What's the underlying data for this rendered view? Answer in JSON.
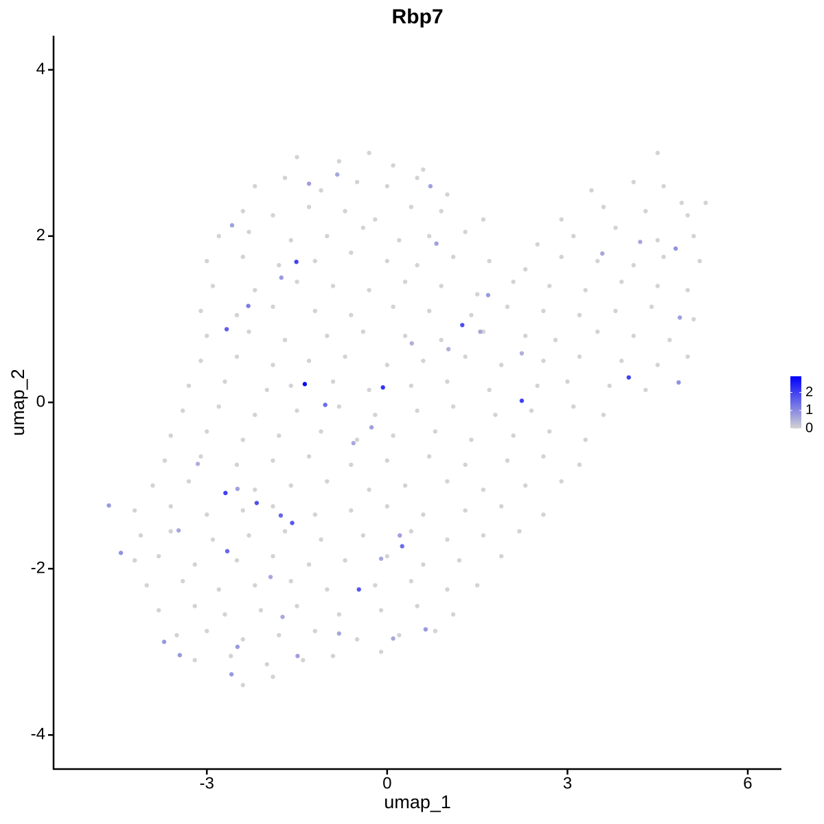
{
  "chart_data": {
    "type": "scatter",
    "title": "Rbp7",
    "x_label": "umap_1",
    "y_label": "umap_2",
    "xlim": [
      -5.55,
      6.56
    ],
    "xticks": [
      -3,
      0,
      3,
      6
    ],
    "ylim": [
      -4.41,
      4.41
    ],
    "yticks": [
      -4,
      -2,
      0,
      2,
      4
    ],
    "colors": [
      "#d3d3d3",
      "#0000ff"
    ],
    "colorlim": [
      0,
      2.9
    ],
    "colorticks": [
      0,
      1,
      2
    ],
    "x": [
      -1.5,
      -0.8,
      -0.3,
      0.1,
      0.6,
      4.5,
      -2.2,
      -1.7,
      -1.1,
      -0.5,
      0.0,
      0.5,
      1.0,
      3.4,
      4.1,
      4.6,
      4.9,
      -2.4,
      -1.9,
      -1.3,
      -0.7,
      -0.2,
      0.4,
      0.9,
      1.6,
      2.9,
      3.6,
      4.3,
      5.0,
      5.3,
      -2.8,
      -2.3,
      -1.6,
      -1.0,
      -0.4,
      0.2,
      0.7,
      1.3,
      2.5,
      3.1,
      3.8,
      4.5,
      5.1,
      -3.0,
      -2.4,
      -1.8,
      -1.2,
      -0.6,
      0.0,
      0.5,
      1.1,
      1.7,
      2.3,
      2.9,
      3.5,
      4.1,
      4.6,
      5.2,
      -2.9,
      -2.2,
      -1.5,
      -0.9,
      -0.3,
      0.3,
      0.9,
      1.5,
      2.1,
      2.7,
      3.3,
      3.9,
      4.5,
      5.0,
      -3.1,
      -2.5,
      -1.9,
      -1.2,
      -0.6,
      0.1,
      0.7,
      1.4,
      2.0,
      2.6,
      3.2,
      3.8,
      4.4,
      5.1,
      -3.0,
      -2.3,
      -1.7,
      -1.0,
      -0.4,
      0.3,
      0.9,
      1.6,
      2.3,
      2.8,
      3.5,
      4.1,
      4.7,
      -3.1,
      -2.5,
      -1.9,
      -1.3,
      -0.7,
      0.0,
      0.6,
      1.3,
      1.9,
      2.6,
      3.2,
      3.9,
      4.5,
      5.0,
      -3.3,
      -2.7,
      -2.0,
      -1.6,
      -0.9,
      -0.3,
      0.4,
      1.0,
      1.7,
      2.5,
      3.0,
      3.7,
      4.3,
      -3.4,
      -2.8,
      -2.2,
      -1.5,
      -0.8,
      -0.2,
      0.5,
      1.1,
      1.8,
      2.4,
      3.1,
      3.6,
      -3.6,
      -3.0,
      -2.4,
      -1.8,
      -1.1,
      -0.5,
      0.1,
      0.8,
      1.4,
      2.1,
      2.7,
      3.3,
      -3.7,
      -3.1,
      -2.5,
      -1.9,
      -1.3,
      -0.6,
      0.0,
      0.7,
      1.3,
      2.0,
      2.6,
      3.2,
      -3.9,
      -3.3,
      -2.2,
      -1.6,
      -1.0,
      -0.3,
      0.3,
      1.0,
      1.6,
      2.3,
      2.9,
      -4.2,
      -3.6,
      -3.0,
      -2.4,
      -1.9,
      -1.2,
      -0.6,
      0.0,
      0.6,
      1.3,
      1.9,
      2.6,
      -4.1,
      -3.6,
      -2.9,
      -2.3,
      -1.7,
      -1.1,
      -0.4,
      0.4,
      1.0,
      1.6,
      2.2,
      -4.2,
      -3.8,
      -3.2,
      -2.5,
      -1.9,
      -1.3,
      -0.7,
      0.0,
      0.6,
      1.2,
      1.9,
      -4.0,
      -3.4,
      -2.8,
      -2.2,
      -1.6,
      -1.0,
      -0.2,
      0.4,
      1.0,
      1.5,
      -3.8,
      -3.2,
      -2.7,
      -2.1,
      -1.5,
      -0.8,
      -0.1,
      0.5,
      1.1,
      -3.5,
      -3.0,
      -2.4,
      -1.8,
      -1.2,
      -0.5,
      0.2,
      0.8,
      -3.2,
      -2.6,
      -2.0,
      -1.4,
      -0.9,
      -0.1,
      -2.4,
      -1.9,
      0.72,
      -1.3,
      -0.83,
      -2.58,
      -1.76,
      0.82,
      1.68,
      4.87,
      4.85,
      4.21,
      3.58,
      4.8,
      -2.49,
      -3.47,
      -3.71,
      -3.45,
      -2.59,
      -2.49,
      -1.49,
      0.64,
      0.1,
      -0.8,
      0.21,
      -0.1,
      -0.26,
      -0.56,
      -3.15,
      -1.94,
      -1.74,
      0.41,
      1.02,
      2.24,
      1.55,
      -1.51,
      -1.37,
      -0.07,
      2.24,
      4.02,
      1.25,
      -2.67,
      -2.69,
      -2.17,
      -1.58,
      -1.77,
      -2.66,
      -0.47,
      0.25,
      -1.03,
      -2.31,
      -4.63,
      -4.43
    ],
    "y": [
      2.95,
      2.9,
      3.0,
      2.85,
      2.8,
      3.0,
      2.6,
      2.7,
      2.55,
      2.65,
      2.6,
      2.7,
      2.5,
      2.55,
      2.65,
      2.6,
      2.4,
      2.3,
      2.25,
      2.35,
      2.3,
      2.2,
      2.35,
      2.3,
      2.2,
      2.2,
      2.35,
      2.3,
      2.25,
      2.4,
      2.0,
      2.05,
      1.95,
      2.0,
      2.1,
      1.95,
      2.0,
      2.05,
      1.9,
      2.0,
      2.1,
      1.95,
      2.0,
      1.7,
      1.75,
      1.65,
      1.7,
      1.8,
      1.7,
      1.65,
      1.75,
      1.7,
      1.6,
      1.75,
      1.7,
      1.65,
      1.75,
      1.7,
      1.4,
      1.35,
      1.45,
      1.4,
      1.35,
      1.45,
      1.4,
      1.3,
      1.45,
      1.4,
      1.35,
      1.45,
      1.4,
      1.35,
      1.1,
      1.05,
      1.15,
      1.1,
      1.05,
      1.15,
      1.1,
      1.05,
      1.15,
      1.1,
      1.05,
      1.1,
      1.15,
      1.0,
      0.8,
      0.85,
      0.75,
      0.8,
      0.85,
      0.8,
      0.75,
      0.85,
      0.8,
      0.75,
      0.85,
      0.8,
      0.75,
      0.5,
      0.55,
      0.45,
      0.5,
      0.55,
      0.45,
      0.5,
      0.55,
      0.45,
      0.5,
      0.55,
      0.5,
      0.45,
      0.55,
      0.2,
      0.25,
      0.15,
      0.2,
      0.25,
      0.15,
      0.2,
      0.25,
      0.15,
      0.2,
      0.25,
      0.2,
      0.15,
      -0.1,
      -0.05,
      -0.15,
      -0.1,
      -0.05,
      -0.15,
      -0.1,
      -0.05,
      -0.15,
      -0.1,
      -0.05,
      -0.15,
      -0.4,
      -0.35,
      -0.45,
      -0.4,
      -0.35,
      -0.45,
      -0.4,
      -0.35,
      -0.45,
      -0.4,
      -0.35,
      -0.45,
      -0.7,
      -0.65,
      -0.75,
      -0.7,
      -0.65,
      -0.75,
      -0.7,
      -0.65,
      -0.75,
      -0.7,
      -0.65,
      -0.75,
      -1.0,
      -0.95,
      -1.05,
      -1.0,
      -0.95,
      -1.05,
      -1.0,
      -0.95,
      -1.05,
      -1.0,
      -0.95,
      -1.3,
      -1.25,
      -1.35,
      -1.3,
      -1.25,
      -1.35,
      -1.3,
      -1.25,
      -1.35,
      -1.3,
      -1.25,
      -1.35,
      -1.6,
      -1.55,
      -1.65,
      -1.6,
      -1.55,
      -1.65,
      -1.6,
      -1.55,
      -1.65,
      -1.6,
      -1.55,
      -1.9,
      -1.85,
      -1.95,
      -1.9,
      -1.85,
      -1.95,
      -1.9,
      -1.85,
      -1.95,
      -1.9,
      -1.85,
      -2.2,
      -2.15,
      -2.25,
      -2.2,
      -2.15,
      -2.25,
      -2.2,
      -2.15,
      -2.25,
      -2.2,
      -2.5,
      -2.45,
      -2.55,
      -2.5,
      -2.45,
      -2.55,
      -2.5,
      -2.45,
      -2.55,
      -2.8,
      -2.75,
      -2.85,
      -2.8,
      -2.75,
      -2.85,
      -2.8,
      -2.75,
      -3.1,
      -3.05,
      -3.15,
      -3.1,
      -3.05,
      -3.0,
      -3.4,
      -3.3,
      2.6,
      2.63,
      2.74,
      2.13,
      1.5,
      1.91,
      1.29,
      1.02,
      0.24,
      1.93,
      1.79,
      1.85,
      -1.04,
      -1.54,
      -2.88,
      -3.04,
      -3.27,
      -2.94,
      -3.05,
      -2.73,
      -2.84,
      -2.78,
      -1.6,
      -1.88,
      -0.3,
      -0.49,
      -0.74,
      -2.1,
      -2.58,
      0.71,
      0.64,
      0.59,
      0.85,
      1.69,
      0.22,
      0.18,
      0.02,
      0.3,
      0.93,
      0.88,
      -1.09,
      -1.21,
      -1.45,
      -1.36,
      -1.79,
      -2.25,
      -1.73,
      -0.03,
      1.16,
      -1.24,
      -1.81
    ],
    "values": [
      0,
      0,
      0,
      0,
      0,
      0,
      0,
      0,
      0,
      0,
      0,
      0,
      0,
      0,
      0,
      0,
      0,
      0,
      0,
      0,
      0,
      0,
      0,
      0,
      0,
      0,
      0,
      0,
      0,
      0,
      0,
      0,
      0,
      0,
      0,
      0,
      0,
      0,
      0,
      0,
      0,
      0,
      0,
      0,
      0,
      0,
      0,
      0,
      0,
      0,
      0,
      0,
      0,
      0,
      0,
      0,
      0,
      0,
      0,
      0,
      0,
      0,
      0,
      0,
      0,
      0,
      0,
      0,
      0,
      0,
      0,
      0,
      0,
      0,
      0,
      0,
      0,
      0,
      0,
      0,
      0,
      0,
      0,
      0,
      0,
      0,
      0,
      0,
      0,
      0,
      0,
      0,
      0,
      0,
      0,
      0,
      0,
      0,
      0,
      0,
      0,
      0,
      0,
      0,
      0,
      0,
      0,
      0,
      0,
      0,
      0,
      0,
      0,
      0,
      0,
      0,
      0,
      0,
      0,
      0,
      0,
      0,
      0,
      0,
      0,
      0,
      0,
      0,
      0,
      0,
      0,
      0,
      0,
      0,
      0,
      0,
      0,
      0,
      0,
      0,
      0,
      0,
      0,
      0,
      0,
      0,
      0,
      0,
      0,
      0,
      0,
      0,
      0,
      0,
      0,
      0,
      0,
      0,
      0,
      0,
      0,
      0,
      0,
      0,
      0,
      0,
      0,
      0,
      0,
      0,
      0,
      0,
      0,
      0,
      0,
      0,
      0,
      0,
      0,
      0,
      0,
      0,
      0,
      0,
      0,
      0,
      0,
      0,
      0,
      0,
      0,
      0,
      0,
      0,
      0,
      0,
      0,
      0,
      0,
      0,
      0,
      0,
      0,
      0,
      0,
      0,
      0,
      0,
      0,
      0,
      0,
      0,
      0,
      0,
      0,
      0,
      0,
      0,
      0,
      0,
      0,
      0,
      0,
      0,
      0,
      0,
      0,
      0,
      0,
      0,
      0,
      0,
      0,
      0,
      0,
      0,
      0,
      0,
      0,
      0,
      0,
      0,
      0.7,
      0.7,
      0.6,
      0.7,
      0.8,
      0.7,
      0.8,
      0.7,
      0.9,
      0.6,
      0.6,
      0.9,
      0.7,
      0.6,
      0.8,
      0.8,
      0.8,
      0.8,
      0.7,
      0.8,
      0.6,
      0.6,
      0.7,
      0.6,
      0.7,
      0.6,
      0.5,
      0.6,
      0.6,
      0.5,
      0.5,
      0.5,
      0.6,
      2.0,
      2.8,
      2.2,
      2.0,
      2.0,
      1.8,
      1.6,
      2.0,
      1.8,
      1.7,
      1.5,
      1.5,
      1.7,
      1.4,
      1.4,
      1.2,
      0.8,
      0.9
    ]
  }
}
